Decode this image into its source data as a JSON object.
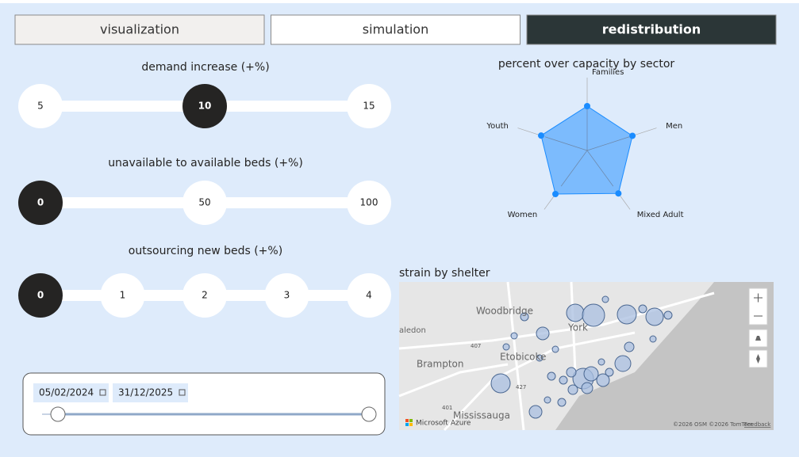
{
  "tabs": {
    "items": [
      "visualization",
      "simulation",
      "redistribution"
    ],
    "active": 2
  },
  "slicers": [
    {
      "title": "demand increase (+%)",
      "options": [
        5,
        10,
        15
      ],
      "selected": 1
    },
    {
      "title": "unavailable to available beds (+%)",
      "options": [
        0,
        50,
        100
      ],
      "selected": 0
    },
    {
      "title": "outsourcing new beds (+%)",
      "options": [
        0,
        1,
        2,
        3,
        4
      ],
      "selected": 0
    }
  ],
  "date_range": {
    "start": "05/02/2024",
    "end": "31/12/2025"
  },
  "radar": {
    "title": "percent over capacity by sector",
    "categories": [
      "Families",
      "Men",
      "Mixed Adult",
      "Women",
      "Youth"
    ],
    "values": [
      56,
      60,
      67,
      68,
      61
    ],
    "rlim": [
      0,
      90
    ],
    "color": "#1a8cff"
  },
  "map": {
    "title": "strain by shelter",
    "labels": [
      "Woodbridge",
      "York",
      "aledon",
      "Brampton",
      "Etobicoke",
      "Mississauga",
      "407",
      "427",
      "401"
    ],
    "attribution": "Microsoft Azure",
    "copyright": "©2026 OSM ©2026 TomTom",
    "feedback": "Feedback"
  }
}
